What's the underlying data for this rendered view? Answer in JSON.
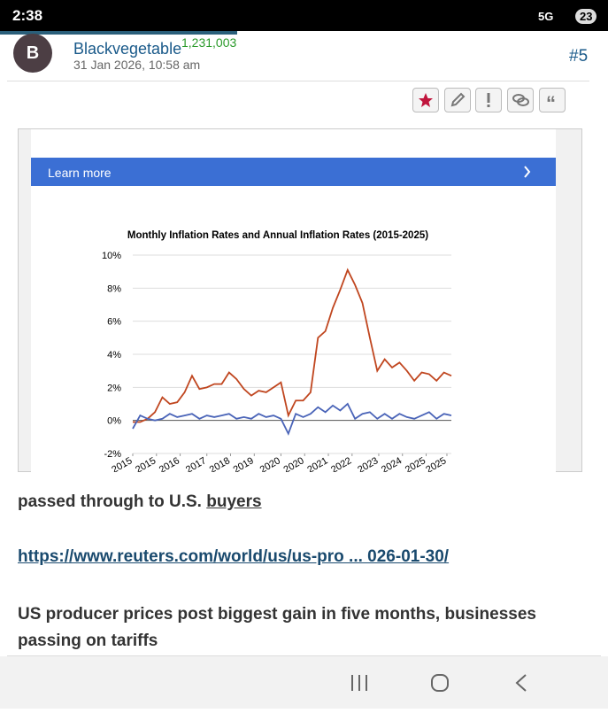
{
  "status_bar": {
    "time": "2:38",
    "network": "5G",
    "battery": "23"
  },
  "post": {
    "avatar_letter": "B",
    "username": "Blackvegetable",
    "points": "1,231,003",
    "timestamp": "31 Jan 2026, 10:58 am",
    "post_number": "#5"
  },
  "ad": {
    "button": "Learn more"
  },
  "chart_data": {
    "type": "line",
    "title": "Monthly Inflation Rates and Annual Inflation Rates (2015-2025)",
    "x": [
      2015,
      2015.25,
      2015.5,
      2015.75,
      2016,
      2016.25,
      2016.5,
      2016.75,
      2017,
      2017.25,
      2017.5,
      2017.75,
      2018,
      2018.25,
      2018.5,
      2018.75,
      2019,
      2019.25,
      2019.5,
      2019.75,
      2020,
      2020.25,
      2020.5,
      2020.75,
      2021,
      2021.25,
      2021.5,
      2021.75,
      2022,
      2022.25,
      2022.5,
      2022.75,
      2023,
      2023.25,
      2023.5,
      2023.75,
      2024,
      2024.25,
      2024.5,
      2024.75,
      2025,
      2025.25,
      2025.5,
      2025.75
    ],
    "series": [
      {
        "color": "#c0461f",
        "values": [
          -0.1,
          -0.1,
          0.1,
          0.5,
          1.4,
          1.0,
          1.1,
          1.7,
          2.7,
          1.9,
          2.0,
          2.2,
          2.2,
          2.9,
          2.5,
          1.9,
          1.5,
          1.8,
          1.7,
          2.0,
          2.3,
          0.3,
          1.2,
          1.2,
          1.7,
          5.0,
          5.4,
          6.8,
          7.9,
          9.1,
          8.2,
          7.1,
          5.0,
          3.0,
          3.7,
          3.2,
          3.5,
          3.0,
          2.4,
          2.9,
          2.8,
          2.4,
          2.9,
          2.7
        ]
      },
      {
        "color": "#4a64b8",
        "values": [
          -0.5,
          0.3,
          0.1,
          0.0,
          0.1,
          0.4,
          0.2,
          0.3,
          0.4,
          0.1,
          0.3,
          0.2,
          0.3,
          0.4,
          0.1,
          0.2,
          0.1,
          0.4,
          0.2,
          0.3,
          0.1,
          -0.8,
          0.4,
          0.2,
          0.4,
          0.8,
          0.5,
          0.9,
          0.6,
          1.0,
          0.1,
          0.4,
          0.5,
          0.1,
          0.4,
          0.1,
          0.4,
          0.2,
          0.1,
          0.3,
          0.5,
          0.1,
          0.4,
          0.3
        ]
      }
    ],
    "xlim": [
      2015,
      2025.75
    ],
    "ylim": [
      -2,
      10
    ],
    "yticks": [
      {
        "value": -2,
        "label": "-2%"
      },
      {
        "value": 0,
        "label": "0%"
      },
      {
        "value": 2,
        "label": "2%"
      },
      {
        "value": 4,
        "label": "4%"
      },
      {
        "value": 6,
        "label": "6%"
      },
      {
        "value": 8,
        "label": "8%"
      },
      {
        "value": 10,
        "label": "10%"
      }
    ],
    "xticks": [
      {
        "value": 2015,
        "label": "2015"
      },
      {
        "value": 2015.8,
        "label": "2015"
      },
      {
        "value": 2016.6,
        "label": "2016"
      },
      {
        "value": 2017.5,
        "label": "2017"
      },
      {
        "value": 2018.3,
        "label": "2018"
      },
      {
        "value": 2019.1,
        "label": "2019"
      },
      {
        "value": 2020,
        "label": "2020"
      },
      {
        "value": 2020.8,
        "label": "2020"
      },
      {
        "value": 2021.6,
        "label": "2021"
      },
      {
        "value": 2022.4,
        "label": "2022"
      },
      {
        "value": 2023.3,
        "label": "2023"
      },
      {
        "value": 2024.1,
        "label": "2024"
      },
      {
        "value": 2024.9,
        "label": "2025"
      },
      {
        "value": 2025.6,
        "label": "2025"
      }
    ],
    "grid": true
  },
  "body": {
    "text": "passed through to U.S. ",
    "underlined": "buyers",
    "link": "https://www.reuters.com/world/us/us-pro ... 026-01-30/",
    "headline": "US producer prices post biggest gain in five months, businesses passing on tariffs"
  }
}
